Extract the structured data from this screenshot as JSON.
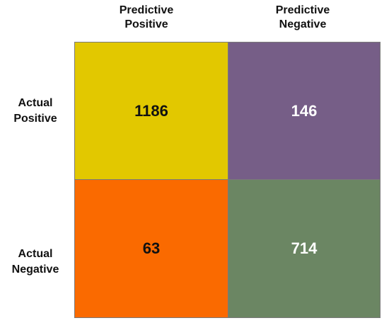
{
  "chart_data": {
    "type": "heatmap",
    "title": "",
    "columns": [
      "Predictive Positive",
      "Predictive Negative"
    ],
    "column_label_lines": [
      [
        "Predictive",
        "Positive"
      ],
      [
        "Predictive",
        "Negative"
      ]
    ],
    "rows": [
      "Actual Positive",
      "Actual Negative"
    ],
    "row_label_lines": [
      [
        "Actual",
        "Positive"
      ],
      [
        "Actual",
        "Negative"
      ]
    ],
    "values": [
      [
        1186,
        146
      ],
      [
        63,
        714
      ]
    ],
    "cell_colors": [
      [
        "#e2c800",
        "#765e87"
      ],
      [
        "#fa6a00",
        "#6b8663"
      ]
    ],
    "text_colors": [
      [
        "#111111",
        "#ffffff"
      ],
      [
        "#111111",
        "#ffffff"
      ]
    ]
  }
}
